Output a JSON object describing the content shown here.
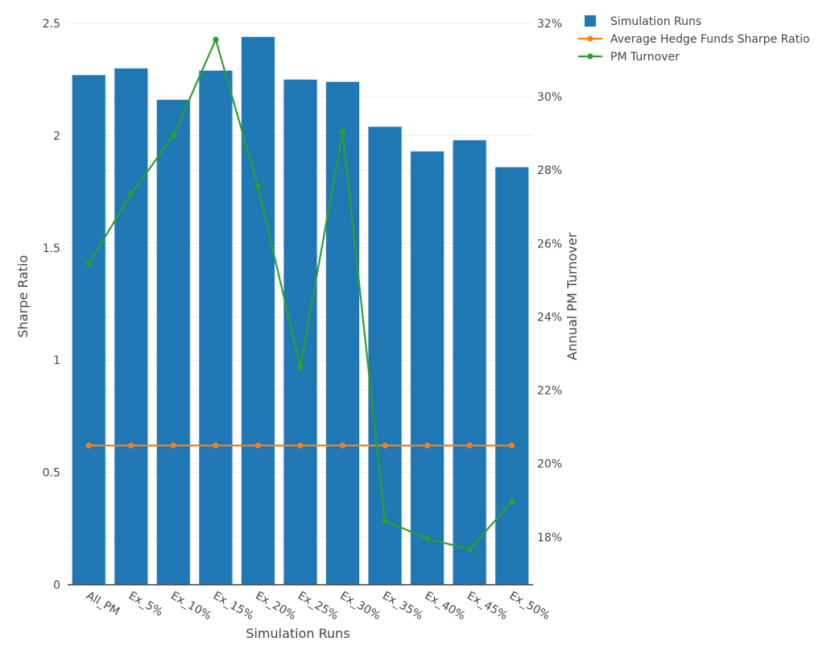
{
  "chart_data": {
    "type": "bar",
    "title": "",
    "xlabel": "Simulation Runs",
    "ylabel": "Sharpe Ratio",
    "y2label": "Annual PM Turnover",
    "categories": [
      "All_PM",
      "Ex_5%",
      "Ex_10%",
      "Ex_15%",
      "Ex_20%",
      "Ex_25%",
      "Ex_30%",
      "Ex_35%",
      "Ex_40%",
      "Ex_45%",
      "Ex_50%"
    ],
    "ylim": [
      0,
      2.5
    ],
    "yticks": [
      0,
      0.5,
      1,
      1.5,
      2,
      2.5
    ],
    "ytick_labels": [
      "0",
      "0.5",
      "1",
      "1.5",
      "2",
      "2.5"
    ],
    "y2lim": [
      16.7,
      32
    ],
    "y2ticks": [
      18,
      20,
      22,
      24,
      26,
      28,
      30,
      32
    ],
    "y2tick_labels": [
      "18%",
      "20%",
      "22%",
      "24%",
      "26%",
      "28%",
      "30%",
      "32%"
    ],
    "grid": true,
    "legend_placement": "top-right, outside",
    "series": [
      {
        "name": "Simulation Runs",
        "type": "bar",
        "axis": "left",
        "color": "#1f77b4",
        "values": [
          2.27,
          2.3,
          2.16,
          2.29,
          2.44,
          2.25,
          2.24,
          2.04,
          1.93,
          1.98,
          1.86
        ]
      },
      {
        "name": "Average Hedge Funds Sharpe Ratio",
        "type": "line",
        "axis": "left",
        "color": "#ff7f0e",
        "values": [
          0.62,
          0.62,
          0.62,
          0.62,
          0.62,
          0.62,
          0.62,
          0.62,
          0.62,
          0.62,
          0.62
        ]
      },
      {
        "name": "PM Turnover",
        "type": "line",
        "axis": "right",
        "unit": "%",
        "color": "#2ca02c",
        "values": [
          25.45,
          27.35,
          28.94,
          31.56,
          27.55,
          22.63,
          29.05,
          18.44,
          17.96,
          17.66,
          18.97
        ]
      }
    ]
  }
}
